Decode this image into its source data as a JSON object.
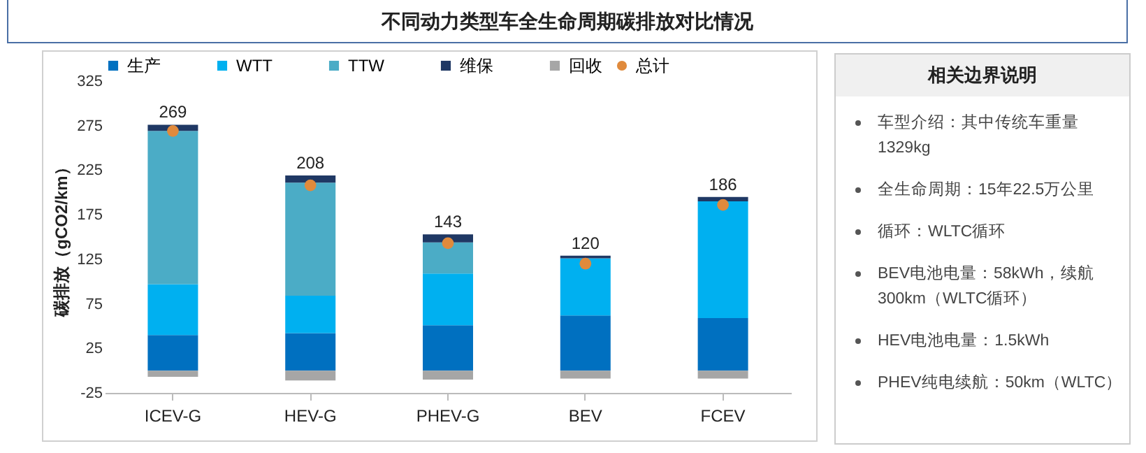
{
  "chart_data": [
    {
      "type": "bar",
      "title": "不同动力类型车全生命周期碳排放对比情况",
      "ylabel": "碳排放（gCO2/km）",
      "categories": [
        "ICEV-G",
        "HEV-G",
        "PHEV-G",
        "BEV",
        "FCEV"
      ],
      "stacked": true,
      "legend": "top",
      "ylim": [
        -25,
        325
      ],
      "yticks": [
        -25,
        25,
        75,
        125,
        175,
        225,
        275,
        325
      ],
      "series": [
        {
          "name": "生产",
          "color": "#0070c0",
          "values": [
            40,
            42,
            51,
            62,
            59
          ]
        },
        {
          "name": "WTT",
          "color": "#00b0f0",
          "values": [
            57,
            42,
            58,
            64,
            131
          ]
        },
        {
          "name": "TTW",
          "color": "#4bacc6",
          "values": [
            172,
            127,
            35,
            0,
            0
          ]
        },
        {
          "name": "维保",
          "color": "#1f3864",
          "values": [
            7,
            8,
            9,
            3,
            5
          ]
        },
        {
          "name": "回收",
          "color": "#a6a6a6",
          "values": [
            -7,
            -11,
            -10,
            -9,
            -9
          ]
        },
        {
          "name": "总计",
          "type": "scatter",
          "marker": "circle",
          "color": "#e08a3c",
          "values": [
            269,
            208,
            143,
            120,
            186
          ]
        }
      ],
      "totals": [
        "269",
        "208",
        "143",
        "120",
        "186"
      ]
    },
    {
      "type": "other",
      "title": "相关边界说明",
      "annotations": [
        "车型介绍：其中传统车重量1329kg",
        "全生命周期：15年22.5万公里",
        "循环：WLTC循环",
        "BEV电池电量：58kWh，续航300km（WLTC循环）",
        "HEV电池电量：1.5kWh",
        "PHEV纯电续航：50km（WLTC）"
      ]
    }
  ]
}
